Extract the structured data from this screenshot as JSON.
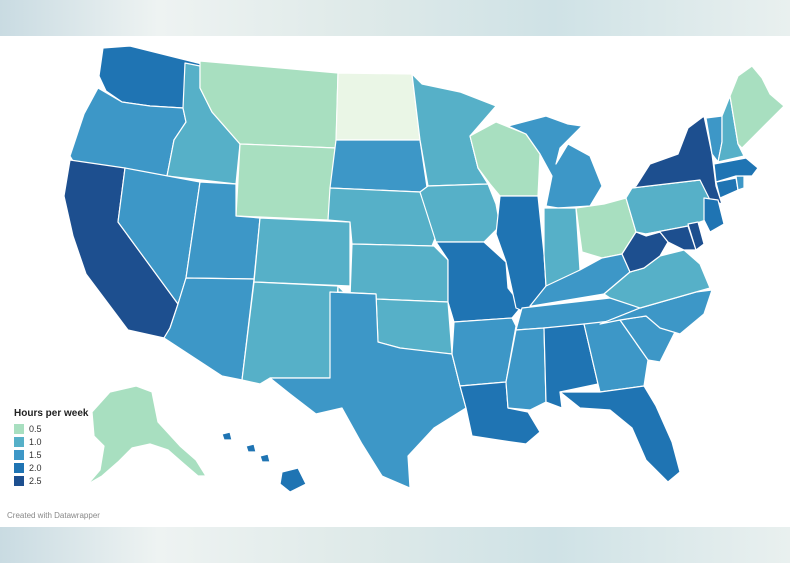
{
  "legend": {
    "title": "Hours per week",
    "bins": [
      {
        "label": "0.5",
        "color": "#a8dfc0"
      },
      {
        "label": "1.0",
        "color": "#56b0c8"
      },
      {
        "label": "1.5",
        "color": "#3d97c7"
      },
      {
        "label": "2.0",
        "color": "#1f74b3"
      },
      {
        "label": "2.5",
        "color": "#1d4f8f"
      }
    ]
  },
  "credit": "Created with Datawrapper",
  "palette": {
    "lightest": "#eaf6e6",
    "bin_0_5": "#a8dfc0",
    "bin_0_75": "#7fc8c6",
    "bin_1_0": "#56b0c8",
    "bin_1_5": "#3d97c7",
    "bin_2_0": "#1f74b3",
    "bin_2_5": "#1d4f8f"
  },
  "states": [
    {
      "name": "WA",
      "bin": "2.0"
    },
    {
      "name": "OR",
      "bin": "1.5"
    },
    {
      "name": "CA",
      "bin": "2.5"
    },
    {
      "name": "ID",
      "bin": "1.0"
    },
    {
      "name": "NV",
      "bin": "1.5"
    },
    {
      "name": "MT",
      "bin": "0.5"
    },
    {
      "name": "WY",
      "bin": "0.5"
    },
    {
      "name": "UT",
      "bin": "1.5"
    },
    {
      "name": "AZ",
      "bin": "1.5"
    },
    {
      "name": "CO",
      "bin": "1.0"
    },
    {
      "name": "NM",
      "bin": "1.0"
    },
    {
      "name": "ND",
      "bin": "0.25"
    },
    {
      "name": "SD",
      "bin": "1.5"
    },
    {
      "name": "NE",
      "bin": "1.0"
    },
    {
      "name": "KS",
      "bin": "1.0"
    },
    {
      "name": "OK",
      "bin": "1.0"
    },
    {
      "name": "TX",
      "bin": "1.5"
    },
    {
      "name": "MN",
      "bin": "1.0"
    },
    {
      "name": "IA",
      "bin": "1.0"
    },
    {
      "name": "MO",
      "bin": "2.0"
    },
    {
      "name": "AR",
      "bin": "1.5"
    },
    {
      "name": "LA",
      "bin": "2.0"
    },
    {
      "name": "WI",
      "bin": "0.5"
    },
    {
      "name": "IL",
      "bin": "2.0"
    },
    {
      "name": "MI",
      "bin": "1.5"
    },
    {
      "name": "IN",
      "bin": "1.0"
    },
    {
      "name": "OH",
      "bin": "0.5"
    },
    {
      "name": "KY",
      "bin": "1.5"
    },
    {
      "name": "TN",
      "bin": "1.5"
    },
    {
      "name": "MS",
      "bin": "1.5"
    },
    {
      "name": "AL",
      "bin": "2.0"
    },
    {
      "name": "GA",
      "bin": "1.5"
    },
    {
      "name": "FL",
      "bin": "2.0"
    },
    {
      "name": "SC",
      "bin": "1.5"
    },
    {
      "name": "NC",
      "bin": "1.5"
    },
    {
      "name": "VA",
      "bin": "1.0"
    },
    {
      "name": "WV",
      "bin": "2.5"
    },
    {
      "name": "PA",
      "bin": "1.0"
    },
    {
      "name": "NY",
      "bin": "2.5"
    },
    {
      "name": "MD",
      "bin": "2.5"
    },
    {
      "name": "DE",
      "bin": "2.5"
    },
    {
      "name": "NJ",
      "bin": "2.0"
    },
    {
      "name": "CT",
      "bin": "2.0"
    },
    {
      "name": "RI",
      "bin": "1.5"
    },
    {
      "name": "MA",
      "bin": "2.0"
    },
    {
      "name": "VT",
      "bin": "1.5"
    },
    {
      "name": "NH",
      "bin": "1.0"
    },
    {
      "name": "ME",
      "bin": "0.5"
    },
    {
      "name": "AK",
      "bin": "0.5"
    },
    {
      "name": "HI",
      "bin": "2.0"
    }
  ]
}
